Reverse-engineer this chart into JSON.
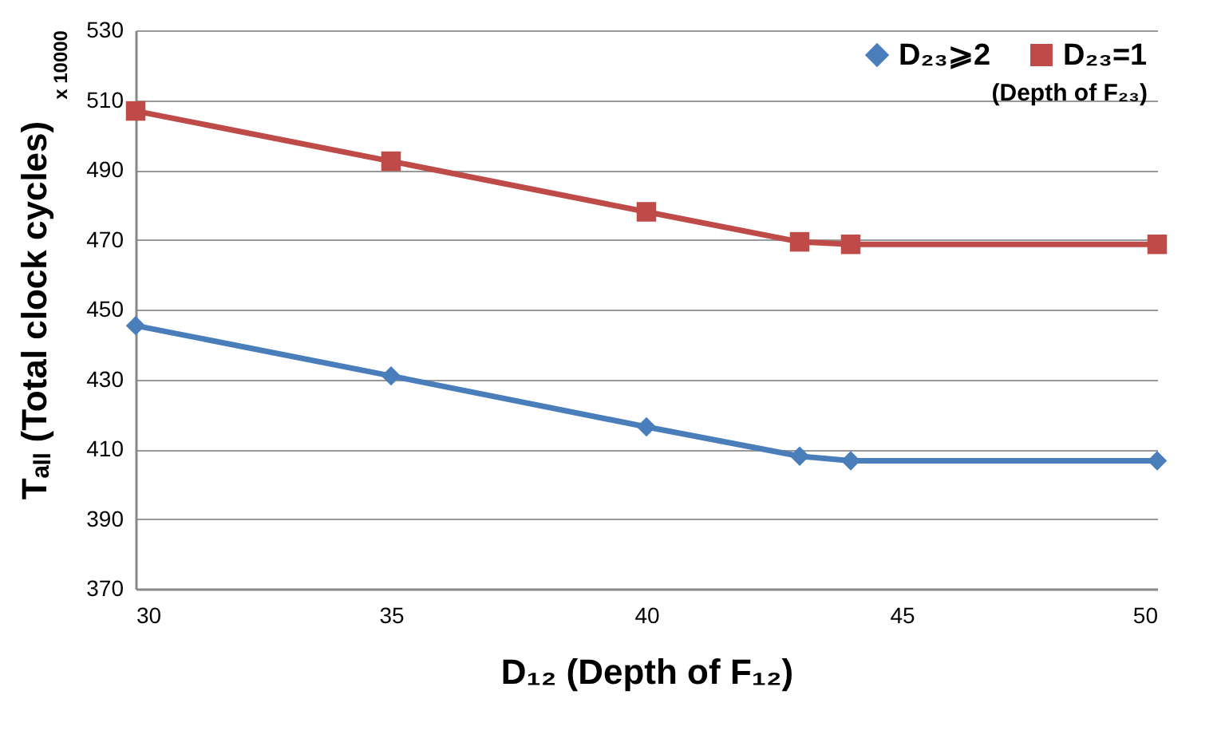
{
  "chart_data": {
    "type": "line",
    "x": [
      30,
      35,
      40,
      43,
      44,
      50
    ],
    "series": [
      {
        "name": "D₂₃⩾2",
        "color": "#4a7ebb",
        "marker": "diamond",
        "values": [
          445.4,
          431,
          416.4,
          408,
          406.7,
          406.7
        ]
      },
      {
        "name": "D₂₃=1",
        "color": "#be4b48",
        "marker": "square",
        "values": [
          506.9,
          492.5,
          478,
          469.4,
          468.7,
          468.7
        ]
      }
    ],
    "xlabel": "D₁₂ (Depth of F₁₂)",
    "ylabel": "Tₐₗₗ (Total clock cycles)",
    "legend_title": "(Depth of F₂₃)",
    "annotations": [
      "x 10000"
    ],
    "xlim": [
      30,
      50
    ],
    "xticks": [
      30,
      35,
      40,
      45,
      50
    ],
    "ylim": [
      370,
      530
    ],
    "yticks": [
      370,
      390,
      410,
      430,
      450,
      470,
      490,
      510,
      530
    ],
    "grid": "y",
    "legend": "top right",
    "line_style": "solid"
  }
}
